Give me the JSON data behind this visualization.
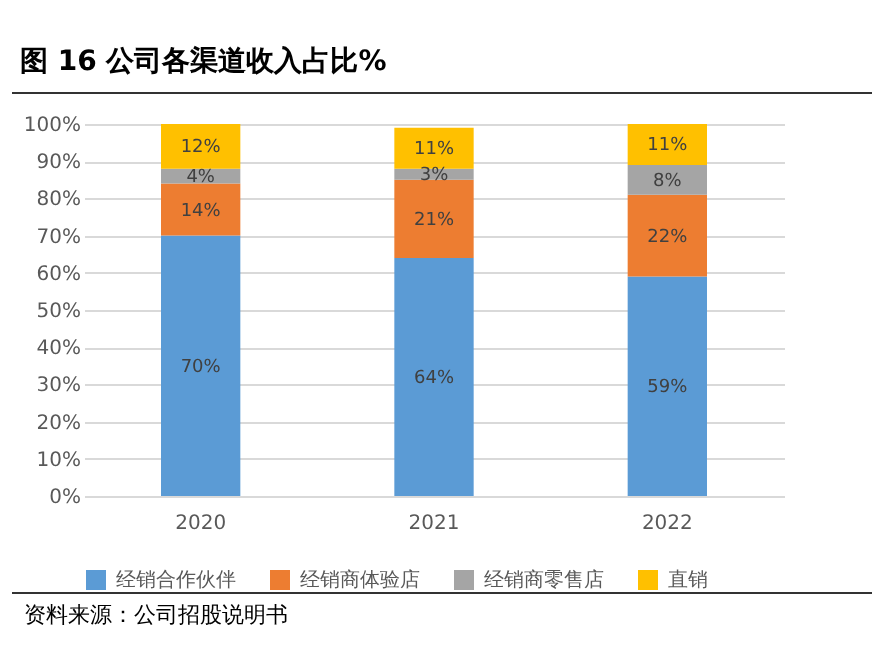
{
  "chart_data": {
    "type": "bar",
    "title": "图 16 公司各渠道收入占比%",
    "stacked": true,
    "categories": [
      "2020",
      "2021",
      "2022"
    ],
    "series": [
      {
        "name": "经销合作伙伴",
        "color": "#5b9bd5",
        "values": [
          70,
          64,
          59
        ],
        "value_labels": [
          "70%",
          "64%",
          "59%"
        ]
      },
      {
        "name": "经销商体验店",
        "color": "#ed7d31",
        "values": [
          14,
          21,
          22
        ],
        "value_labels": [
          "14%",
          "21%",
          "22%"
        ]
      },
      {
        "name": "经销商零售店",
        "color": "#a5a5a5",
        "values": [
          4,
          3,
          8
        ],
        "value_labels": [
          "4%",
          "3%",
          "8%"
        ]
      },
      {
        "name": "直销",
        "color": "#ffc000",
        "values": [
          12,
          11,
          11
        ],
        "value_labels": [
          "12%",
          "11%",
          "11%"
        ]
      }
    ],
    "ylim": [
      0,
      100
    ],
    "yticks": [
      {
        "value": 0,
        "label": "0%"
      },
      {
        "value": 10,
        "label": "10%"
      },
      {
        "value": 20,
        "label": "20%"
      },
      {
        "value": 30,
        "label": "30%"
      },
      {
        "value": 40,
        "label": "40%"
      },
      {
        "value": 50,
        "label": "50%"
      },
      {
        "value": 60,
        "label": "60%"
      },
      {
        "value": 70,
        "label": "70%"
      },
      {
        "value": 80,
        "label": "80%"
      },
      {
        "value": 90,
        "label": "90%"
      },
      {
        "value": 100,
        "label": "100%"
      }
    ],
    "grid": "y",
    "legend": "bottom",
    "annotations": [
      "资料来源：公司招股说明书"
    ]
  }
}
